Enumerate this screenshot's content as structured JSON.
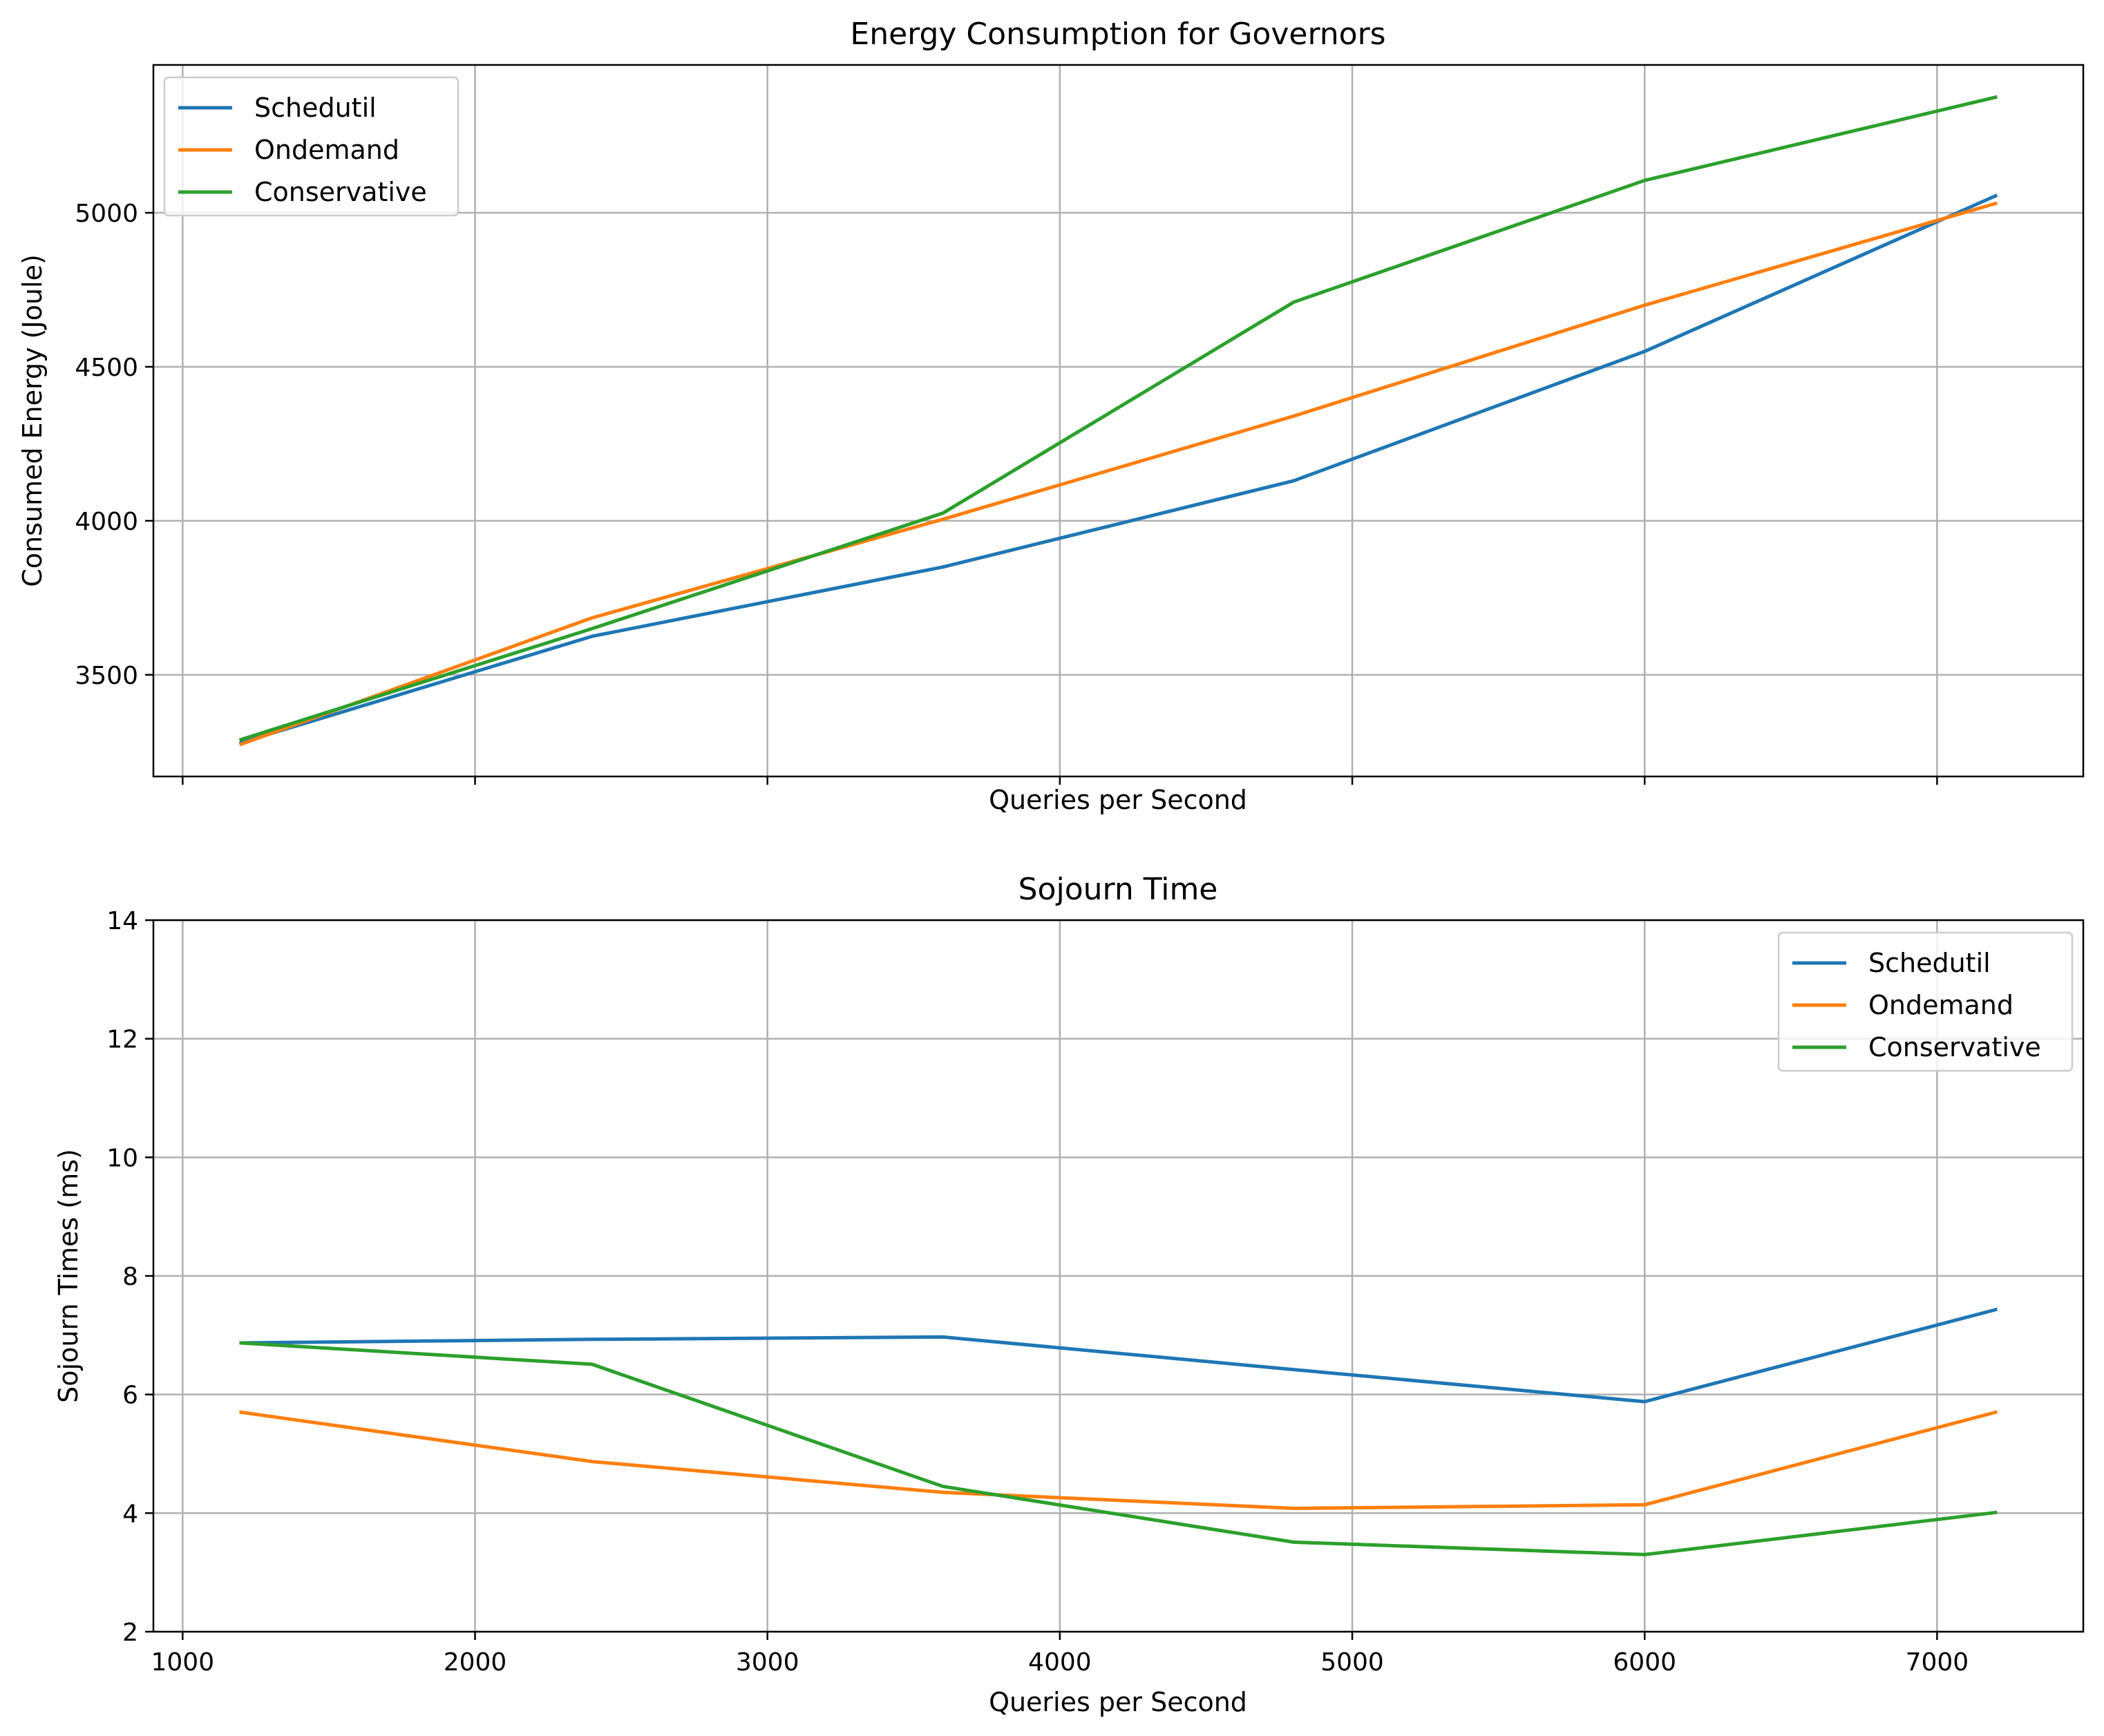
{
  "chart_data": [
    {
      "type": "line",
      "title": "Energy Consumption for Governors",
      "xlabel": "Queries per Second",
      "ylabel": "Consumed Energy (Joule)",
      "x": [
        1200,
        2400,
        3600,
        4800,
        6000,
        7200
      ],
      "xlim": [
        900,
        7500
      ],
      "ylim": [
        3170,
        5480
      ],
      "xticks": [
        1000,
        2000,
        3000,
        4000,
        5000,
        6000,
        7000
      ],
      "xtick_labels_visible": false,
      "yticks": [
        3500,
        4000,
        4500,
        5000
      ],
      "grid": true,
      "legend_position": "upper-left",
      "series": [
        {
          "name": "Schedutil",
          "color": "#1f77b4",
          "values": [
            3280,
            3625,
            3850,
            4130,
            4550,
            5055
          ]
        },
        {
          "name": "Ondemand",
          "color": "#ff7f0e",
          "values": [
            3275,
            3685,
            4005,
            4340,
            4700,
            5030
          ]
        },
        {
          "name": "Conservative",
          "color": "#2ca02c",
          "values": [
            3290,
            3650,
            4025,
            4710,
            5105,
            5375
          ]
        }
      ]
    },
    {
      "type": "line",
      "title": "Sojourn Time",
      "xlabel": "Queries per Second",
      "ylabel": "Sojourn Times (ms)",
      "x": [
        1200,
        2400,
        3600,
        4800,
        6000,
        7200
      ],
      "xlim": [
        900,
        7500
      ],
      "ylim": [
        2,
        14
      ],
      "xticks": [
        1000,
        2000,
        3000,
        4000,
        5000,
        6000,
        7000
      ],
      "xtick_labels_visible": true,
      "yticks": [
        2,
        4,
        6,
        8,
        10,
        12,
        14
      ],
      "grid": true,
      "legend_position": "upper-right",
      "series": [
        {
          "name": "Schedutil",
          "color": "#1f77b4",
          "values": [
            6.87,
            6.93,
            6.97,
            6.42,
            5.88,
            7.43
          ]
        },
        {
          "name": "Ondemand",
          "color": "#ff7f0e",
          "values": [
            5.7,
            4.87,
            4.35,
            4.08,
            4.14,
            5.7
          ]
        },
        {
          "name": "Conservative",
          "color": "#2ca02c",
          "values": [
            6.87,
            6.51,
            4.45,
            3.51,
            3.3,
            4.01
          ]
        }
      ]
    }
  ]
}
